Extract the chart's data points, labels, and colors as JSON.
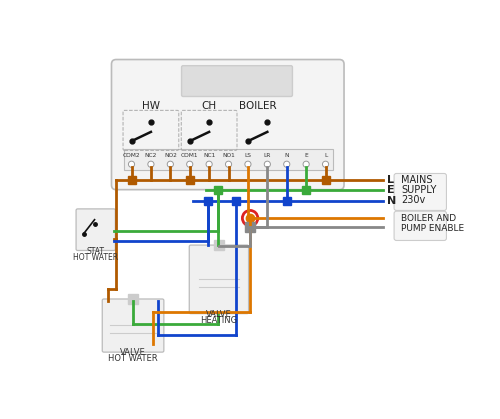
{
  "bg_color": "#ffffff",
  "brown": "#b05a00",
  "green": "#3aaa3a",
  "blue": "#1144cc",
  "orange": "#dd7700",
  "gray": "#888888",
  "red": "#dd2222",
  "black": "#111111",
  "light_gray": "#e8e8e8",
  "box_edge": "#bbbbbb",
  "terminal_labels": [
    "COM2",
    "NC2",
    "NO2",
    "COM1",
    "NC1",
    "NO1",
    "LS",
    "LR",
    "N",
    "E",
    "L"
  ],
  "mains_text": [
    "MAINS",
    "SUPPLY",
    "230v"
  ],
  "boiler_text": [
    "BOILER AND",
    "PUMP ENABLE"
  ],
  "hw_stat_text": [
    "HOT WATER",
    "STAT"
  ],
  "hw_valve_text": [
    "HOT WATER",
    "VALVE"
  ],
  "heating_valve_text": [
    "HEATING",
    "VALVE"
  ]
}
